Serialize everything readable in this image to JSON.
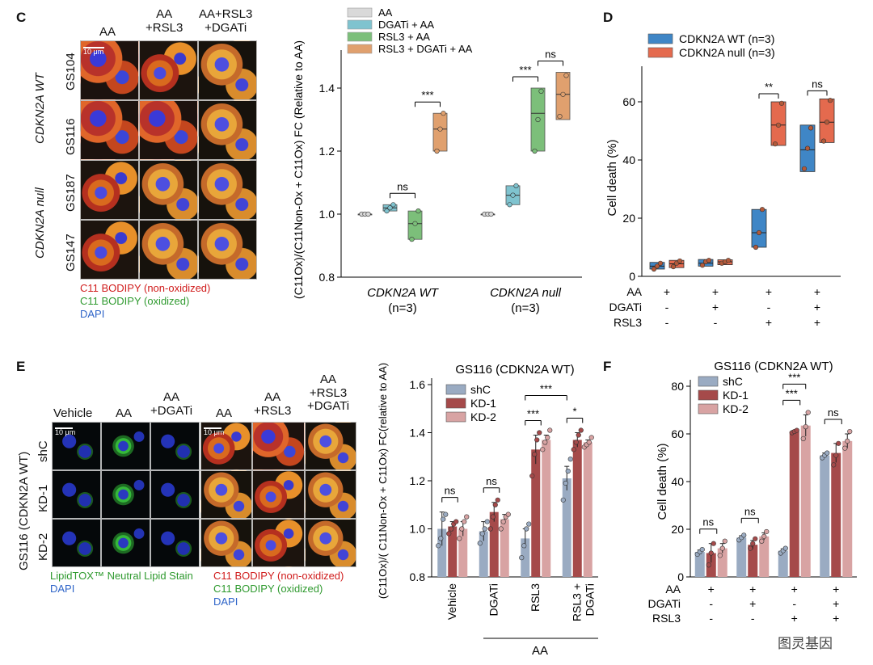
{
  "panel_letters": {
    "C": "C",
    "D": "D",
    "E": "E",
    "F": "F"
  },
  "panelC": {
    "col_headers": [
      "AA",
      "AA\n+RSL3",
      "AA+RSL3\n+DGATi"
    ],
    "row_labels": [
      "GS104",
      "GS116",
      "GS187",
      "GS147"
    ],
    "group_labels": [
      "CDKN2A WT",
      "CDKN2A null"
    ],
    "scale_text": "10 μm",
    "legend": [
      "C11 BODIPY (non-oxidized)",
      "C11 BODIPY (oxidized)",
      "DAPI"
    ]
  },
  "panelE": {
    "col_headers": [
      "Vehicle",
      "AA",
      "AA\n+DGATi",
      "AA",
      "AA\n+RSL3",
      "AA\n+RSL3\n+DGATi"
    ],
    "row_labels": [
      "shC",
      "KD-1",
      "KD-2"
    ],
    "side_label": "GS116 (CDKN2A WT)",
    "scale_text": "10 μm",
    "legend_left": [
      "LipidTOX™ Neutral Lipid Stain",
      "DAPI"
    ],
    "legend_right": [
      "C11 BODIPY (non-oxidized)",
      "C11 BODIPY (oxidized)",
      "DAPI"
    ]
  },
  "chart_data": [
    {
      "id": "C-right",
      "type": "box",
      "ylabel": "(C11Ox)/(C11Non-Ox + C11Ox) FC (Relative to AA)",
      "ylim": [
        0.8,
        1.5
      ],
      "yticks": [
        "0.8",
        "1.0",
        "1.2",
        "1.4"
      ],
      "legend": [
        "AA",
        "DGATi + AA",
        "RSL3 + AA",
        "RSL3 + DGATi + AA"
      ],
      "colors": [
        "#d9d9d9",
        "#7fc3cf",
        "#7cbf7a",
        "#e0a06e"
      ],
      "groups": [
        "CDKN2A WT",
        "CDKN2A null"
      ],
      "group_n": [
        "(n=3)",
        "(n=3)"
      ],
      "series": [
        {
          "group": 0,
          "cond": 0,
          "min": 1.0,
          "q1": 1.0,
          "med": 1.0,
          "q3": 1.0,
          "max": 1.0,
          "points": [
            1.0,
            1.0,
            1.0
          ]
        },
        {
          "group": 0,
          "cond": 1,
          "min": 1.01,
          "q1": 1.01,
          "med": 1.02,
          "q3": 1.03,
          "max": 1.03,
          "points": [
            1.01,
            1.02,
            1.03
          ]
        },
        {
          "group": 0,
          "cond": 2,
          "min": 0.92,
          "q1": 0.92,
          "med": 0.97,
          "q3": 1.01,
          "max": 1.01,
          "points": [
            0.92,
            0.97,
            1.01
          ]
        },
        {
          "group": 0,
          "cond": 3,
          "min": 1.2,
          "q1": 1.2,
          "med": 1.27,
          "q3": 1.32,
          "max": 1.32,
          "points": [
            1.2,
            1.27,
            1.32
          ]
        },
        {
          "group": 1,
          "cond": 0,
          "min": 1.0,
          "q1": 1.0,
          "med": 1.0,
          "q3": 1.0,
          "max": 1.0,
          "points": [
            1.0,
            1.0,
            1.0
          ]
        },
        {
          "group": 1,
          "cond": 1,
          "min": 1.03,
          "q1": 1.03,
          "med": 1.06,
          "q3": 1.09,
          "max": 1.09,
          "points": [
            1.03,
            1.06,
            1.09
          ]
        },
        {
          "group": 1,
          "cond": 2,
          "min": 1.2,
          "q1": 1.2,
          "med": 1.32,
          "q3": 1.4,
          "max": 1.4,
          "points": [
            1.2,
            1.3,
            1.39
          ]
        },
        {
          "group": 1,
          "cond": 3,
          "min": 1.3,
          "q1": 1.3,
          "med": 1.38,
          "q3": 1.45,
          "max": 1.45,
          "points": [
            1.31,
            1.38,
            1.44
          ]
        }
      ],
      "sig": [
        {
          "text": "ns",
          "group": 0,
          "from": 1,
          "to": 2
        },
        {
          "text": "***",
          "group": 0,
          "from": 2,
          "to": 3
        },
        {
          "text": "***",
          "group": 1,
          "from": 1,
          "to": 2
        },
        {
          "text": "ns",
          "group": 1,
          "from": 2,
          "to": 3
        }
      ]
    },
    {
      "id": "D",
      "type": "box",
      "ylabel": "Cell death  (%)",
      "ylim": [
        0,
        70
      ],
      "yticks": [
        "0",
        "20",
        "40",
        "60"
      ],
      "legend": [
        "CDKN2A WT (n=3)",
        "CDKN2A null (n=3)"
      ],
      "colors": [
        "#3f86c6",
        "#e46a4e"
      ],
      "conditions": [
        {
          "name": "AA",
          "vals": [
            "+",
            "+",
            "+",
            "+"
          ]
        },
        {
          "name": "DGATi",
          "vals": [
            "-",
            "+",
            "-",
            "+"
          ]
        },
        {
          "name": "RSL3",
          "vals": [
            "-",
            "-",
            "+",
            "+"
          ]
        }
      ],
      "series": [
        {
          "name": "CDKN2A WT",
          "boxes": [
            {
              "min": 2.5,
              "q1": 2.5,
              "med": 3.5,
              "q3": 4.8,
              "max": 4.8,
              "points": [
                2.5,
                3.5,
                4.5
              ]
            },
            {
              "min": 3.5,
              "q1": 3.5,
              "med": 4.5,
              "q3": 5.8,
              "max": 5.8,
              "points": [
                3.8,
                5.0,
                5.5
              ]
            },
            {
              "min": 10,
              "q1": 10,
              "med": 15,
              "q3": 23,
              "max": 23,
              "points": [
                10,
                15,
                23
              ]
            },
            {
              "min": 36,
              "q1": 36,
              "med": 43.5,
              "q3": 52,
              "max": 52,
              "points": [
                37,
                44,
                51
              ]
            }
          ]
        },
        {
          "name": "CDKN2A null",
          "boxes": [
            {
              "min": 3,
              "q1": 3,
              "med": 4.3,
              "q3": 5.5,
              "max": 5.5,
              "points": [
                3.3,
                4.5,
                5.3
              ]
            },
            {
              "min": 4,
              "q1": 4,
              "med": 5,
              "q3": 5.7,
              "max": 5.7,
              "points": [
                4.5,
                5.0,
                5.5
              ]
            },
            {
              "min": 45,
              "q1": 45,
              "med": 52,
              "q3": 60,
              "max": 60,
              "points": [
                45.5,
                52,
                59.5
              ]
            },
            {
              "min": 46,
              "q1": 46,
              "med": 53,
              "q3": 61,
              "max": 61,
              "points": [
                46.5,
                53,
                60.5
              ]
            }
          ]
        }
      ],
      "sig": [
        {
          "text": "**",
          "pos": 2
        },
        {
          "text": "ns",
          "pos": 3
        }
      ]
    },
    {
      "id": "E-right",
      "type": "bar",
      "title": "GS116 (CDKN2A WT)",
      "ylabel": "(C11Ox)/( C11Non-Ox + C11Ox) FC(relative to AA)",
      "ylim": [
        0.8,
        1.6
      ],
      "yticks": [
        "0.8",
        "1.0",
        "1.2",
        "1.4",
        "1.6"
      ],
      "categories": [
        "Vehicle",
        "DGATi",
        "RSL3",
        "RSL3 +\nDGATi"
      ],
      "xgroup_label": "AA",
      "series": [
        {
          "name": "shC",
          "color": "#9aabc2",
          "values": [
            1.0,
            0.99,
            0.96,
            1.21
          ],
          "err": [
            0.07,
            0.04,
            0.04,
            0.05
          ],
          "points": [
            [
              0.93,
              0.96,
              1.04,
              1.06
            ],
            [
              0.94,
              0.98,
              1.0,
              1.03
            ],
            [
              0.88,
              0.93,
              1.0,
              1.02
            ],
            [
              1.12,
              1.19,
              1.24,
              1.29
            ]
          ]
        },
        {
          "name": "KD-1",
          "color": "#a54a4a",
          "values": [
            1.01,
            1.07,
            1.33,
            1.37
          ],
          "err": [
            0.02,
            0.04,
            0.06,
            0.03
          ],
          "points": [
            [
              0.98,
              1.0,
              1.02,
              1.03
            ],
            [
              1.0,
              1.05,
              1.1,
              1.12
            ],
            [
              1.22,
              1.31,
              1.37,
              1.4
            ],
            [
              1.33,
              1.36,
              1.39,
              1.41
            ]
          ]
        },
        {
          "name": "KD-2",
          "color": "#d8a3a3",
          "values": [
            1.0,
            1.04,
            1.37,
            1.36
          ],
          "err": [
            0.03,
            0.02,
            0.02,
            0.01
          ],
          "points": [
            [
              0.96,
              1.0,
              1.03,
              1.05
            ],
            [
              1.0,
              1.03,
              1.05,
              1.06
            ],
            [
              1.33,
              1.36,
              1.38,
              1.41
            ],
            [
              1.34,
              1.35,
              1.36,
              1.38
            ]
          ]
        }
      ],
      "sig": [
        {
          "text": "ns",
          "cat": 0
        },
        {
          "text": "ns",
          "cat": 1
        },
        {
          "text": "***",
          "cat": 2,
          "inner": true
        },
        {
          "text": "*",
          "cat": 3,
          "inner": true
        },
        {
          "text": "***",
          "span": [
            2,
            3
          ]
        }
      ]
    },
    {
      "id": "F",
      "type": "bar",
      "title": "GS116 (CDKN2A WT)",
      "ylabel": "Cell death (%)",
      "ylim": [
        0,
        80
      ],
      "yticks": [
        "0",
        "20",
        "40",
        "60",
        "80"
      ],
      "conditions": [
        {
          "name": "AA",
          "vals": [
            "+",
            "+",
            "+",
            "+"
          ]
        },
        {
          "name": "DGATi",
          "vals": [
            "-",
            "+",
            "-",
            "+"
          ]
        },
        {
          "name": "RSL3",
          "vals": [
            "-",
            "-",
            "+",
            "+"
          ]
        }
      ],
      "series": [
        {
          "name": "shC",
          "color": "#9aabc2",
          "values": [
            10.5,
            16.5,
            11,
            51
          ],
          "err": [
            0.8,
            0.8,
            0.8,
            1
          ],
          "points": [
            [
              9.5,
              10.5,
              11.5
            ],
            [
              15.5,
              16.5,
              17.5
            ],
            [
              10,
              11,
              12
            ],
            [
              50,
              51,
              52
            ]
          ]
        },
        {
          "name": "KD-1",
          "color": "#a54a4a",
          "values": [
            10,
            13.5,
            61,
            52
          ],
          "err": [
            4,
            1.8,
            0.5,
            4
          ],
          "points": [
            [
              5,
              10,
              14
            ],
            [
              12,
              14,
              16
            ],
            [
              60.5,
              61,
              61.5
            ],
            [
              47,
              51,
              56
            ]
          ]
        },
        {
          "name": "KD-2",
          "color": "#d8a3a3",
          "values": [
            12,
            17,
            63.5,
            57
          ],
          "err": [
            2,
            1.5,
            4.5,
            3
          ],
          "points": [
            [
              9,
              12,
              15
            ],
            [
              15,
              17,
              19
            ],
            [
              58,
              63,
              69
            ],
            [
              54,
              57,
              61
            ]
          ]
        }
      ],
      "sig": [
        {
          "text": "ns",
          "cat": 0
        },
        {
          "text": "ns",
          "cat": 1
        },
        {
          "text": "***",
          "cat": 2,
          "inner": true
        },
        {
          "text": "***",
          "cat": 2,
          "outer": true
        },
        {
          "text": "ns",
          "cat": 3
        }
      ]
    }
  ],
  "watermark": "图灵基因"
}
